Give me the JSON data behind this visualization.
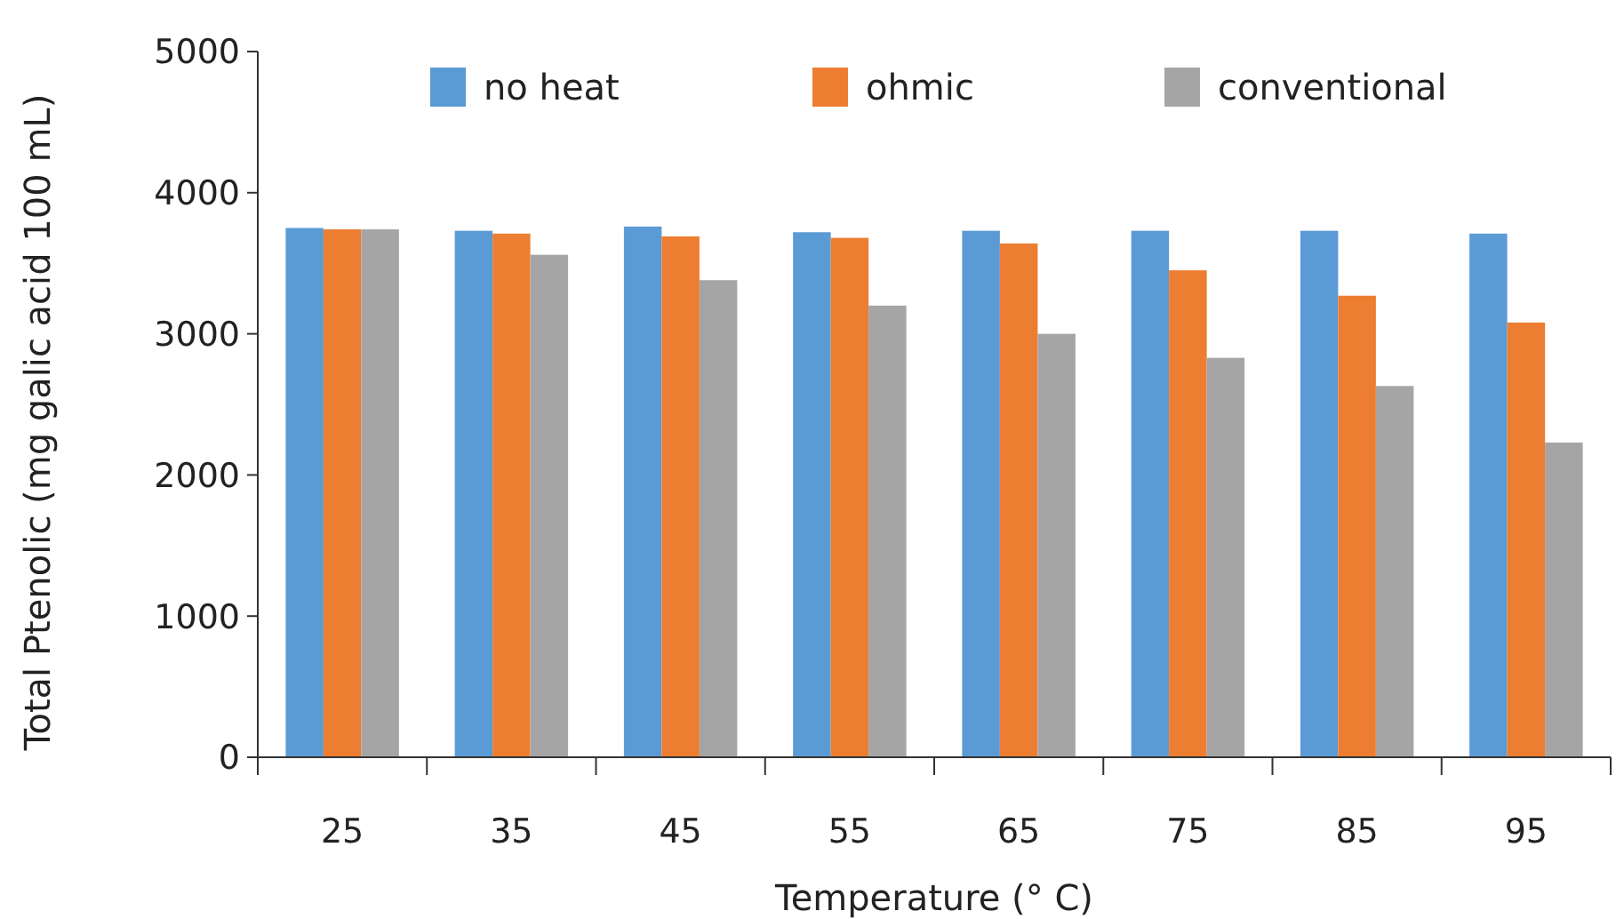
{
  "chart_data": {
    "type": "bar",
    "xlabel": "Temperature (° C)",
    "ylabel": "Total Ptenolic (mg galic acid 100 mL)",
    "categories": [
      "25",
      "35",
      "45",
      "55",
      "65",
      "75",
      "85",
      "95"
    ],
    "series": [
      {
        "name": "no heat",
        "color": "#5b9bd5",
        "values": [
          3750,
          3730,
          3760,
          3720,
          3730,
          3730,
          3730,
          3710
        ]
      },
      {
        "name": "ohmic",
        "color": "#ed7d31",
        "values": [
          3740,
          3710,
          3690,
          3680,
          3640,
          3450,
          3270,
          3080
        ]
      },
      {
        "name": "conventional",
        "color": "#a5a5a5",
        "values": [
          3740,
          3560,
          3380,
          3200,
          3000,
          2830,
          2630,
          2230
        ]
      }
    ],
    "ylim": [
      0,
      5000
    ],
    "yticks": [
      0,
      1000,
      2000,
      3000,
      4000,
      5000
    ],
    "grid": false,
    "legend": "top"
  }
}
